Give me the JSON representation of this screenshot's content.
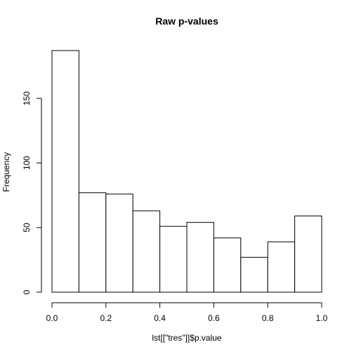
{
  "chart_data": {
    "type": "bar",
    "title": "Raw p-values",
    "xlabel": "lst[[\"tres\"]]$p.value",
    "ylabel": "Frequency",
    "bins": [
      {
        "x0": 0.0,
        "x1": 0.1,
        "count": 187
      },
      {
        "x0": 0.1,
        "x1": 0.2,
        "count": 77
      },
      {
        "x0": 0.2,
        "x1": 0.3,
        "count": 76
      },
      {
        "x0": 0.3,
        "x1": 0.4,
        "count": 63
      },
      {
        "x0": 0.4,
        "x1": 0.5,
        "count": 51
      },
      {
        "x0": 0.5,
        "x1": 0.6,
        "count": 54
      },
      {
        "x0": 0.6,
        "x1": 0.7,
        "count": 42
      },
      {
        "x0": 0.7,
        "x1": 0.8,
        "count": 27
      },
      {
        "x0": 0.8,
        "x1": 0.9,
        "count": 39
      },
      {
        "x0": 0.9,
        "x1": 1.0,
        "count": 59
      }
    ],
    "xlim": [
      0,
      1
    ],
    "ylim": [
      0,
      187
    ],
    "xticks": [
      0.0,
      0.2,
      0.4,
      0.6,
      0.8,
      1.0
    ],
    "xtick_labels": [
      "0.0",
      "0.2",
      "0.4",
      "0.6",
      "0.8",
      "1.0"
    ],
    "yticks": [
      0,
      50,
      100,
      150
    ],
    "ytick_labels": [
      "0",
      "50",
      "100",
      "150"
    ],
    "grid": false,
    "legend": "none"
  }
}
